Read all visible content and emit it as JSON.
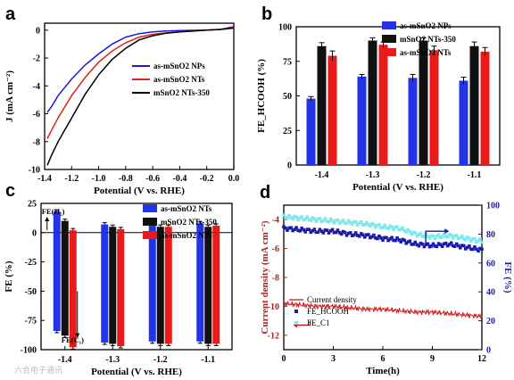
{
  "panels": {
    "a": "a",
    "b": "b",
    "c": "c",
    "d": "d"
  },
  "watermark": "六合电子通讯",
  "chart_data": [
    {
      "id": "a",
      "type": "line",
      "xlabel": "Potential (V vs. RHE)",
      "ylabel": "J (mA cm⁻²)",
      "xlim": [
        -1.4,
        0.0
      ],
      "ylim": [
        -10,
        0.5
      ],
      "xticks": [
        "-1.4",
        "-1.2",
        "-1.0",
        "-0.8",
        "-0.6",
        "-0.4",
        "-0.2",
        "0.0"
      ],
      "yticks": [
        "0",
        "-2",
        "-4",
        "-6",
        "-8",
        "-10"
      ],
      "legend_position": "right",
      "series": [
        {
          "name": "as-mSnO2 NPs",
          "color": "#1a1adb",
          "x": [
            -1.38,
            -1.35,
            -1.3,
            -1.2,
            -1.1,
            -1.0,
            -0.9,
            -0.8,
            -0.7,
            -0.6,
            -0.5,
            -0.4,
            -0.3,
            -0.2,
            -0.1,
            0.0
          ],
          "y": [
            -5.9,
            -5.5,
            -4.7,
            -3.5,
            -2.5,
            -1.7,
            -1.0,
            -0.5,
            -0.25,
            -0.12,
            -0.06,
            -0.03,
            -0.01,
            0.0,
            0.05,
            0.25
          ]
        },
        {
          "name": "as-mSnO2 NTs",
          "color": "#e0201c",
          "x": [
            -1.38,
            -1.35,
            -1.3,
            -1.2,
            -1.1,
            -1.0,
            -0.9,
            -0.8,
            -0.7,
            -0.6,
            -0.5,
            -0.4,
            -0.3,
            -0.2,
            -0.1,
            0.0
          ],
          "y": [
            -7.8,
            -7.2,
            -6.3,
            -4.7,
            -3.4,
            -2.3,
            -1.5,
            -0.9,
            -0.5,
            -0.3,
            -0.2,
            -0.12,
            -0.06,
            0.0,
            0.05,
            0.2
          ]
        },
        {
          "name": "mSnO2 NTs-350",
          "color": "#000000",
          "x": [
            -1.38,
            -1.35,
            -1.3,
            -1.2,
            -1.1,
            -1.0,
            -0.9,
            -0.8,
            -0.7,
            -0.6,
            -0.5,
            -0.4,
            -0.3,
            -0.2,
            -0.1,
            0.0
          ],
          "y": [
            -9.7,
            -9.0,
            -8.0,
            -6.3,
            -4.6,
            -3.2,
            -2.1,
            -1.3,
            -0.7,
            -0.4,
            -0.22,
            -0.12,
            -0.06,
            0.0,
            0.05,
            0.15
          ]
        }
      ]
    },
    {
      "id": "b",
      "type": "bar",
      "xlabel": "Potential (V vs. RHE)",
      "ylabel": "FE_HCOOH (%)",
      "ylim": [
        0,
        100
      ],
      "yticks": [
        "0",
        "25",
        "50",
        "75",
        "100"
      ],
      "categories": [
        "-1.4",
        "-1.3",
        "-1.2",
        "-1.1"
      ],
      "legend_position": "top-right",
      "series": [
        {
          "name": "as-mSnO2 NPs",
          "color": "#2233e8",
          "values": [
            48,
            64,
            63,
            61
          ],
          "err": [
            1.5,
            1.5,
            2.5,
            2.5
          ]
        },
        {
          "name": "mSnO2 NTs-350",
          "color": "#111111",
          "values": [
            86,
            90,
            90,
            86
          ],
          "err": [
            2.5,
            2,
            2,
            3
          ]
        },
        {
          "name": "as-mSnO2 NTs",
          "color": "#e81a1a",
          "values": [
            79,
            87,
            83,
            82
          ],
          "err": [
            3.5,
            2,
            3,
            3
          ]
        }
      ]
    },
    {
      "id": "c",
      "type": "bar",
      "xlabel": "Potential (V vs. RHE)",
      "ylabel": "FE (%)",
      "ylim": [
        -100,
        25
      ],
      "yticks": [
        "25",
        "0",
        "-25",
        "-50",
        "-75",
        "-100"
      ],
      "categories": [
        "-1.4",
        "-1.3",
        "-1.2",
        "-1.1"
      ],
      "annotations": [
        "FE(H₂)",
        "FE(C₁)"
      ],
      "legend_position": "right",
      "series_h2": [
        {
          "name": "as-mSnO2 NTs",
          "color": "#2233e8",
          "values": [
            18,
            7,
            8,
            8
          ]
        },
        {
          "name": "mSnO2 NTs-350",
          "color": "#111111",
          "values": [
            10,
            5,
            5,
            5
          ]
        },
        {
          "name": "as-mSnO2 NPs",
          "color": "#e81a1a",
          "values": [
            2,
            3,
            5,
            6
          ]
        }
      ],
      "series_c1": [
        {
          "name": "as-mSnO2 NTs",
          "color": "#2233e8",
          "values": [
            -84,
            -94,
            -93,
            -93
          ]
        },
        {
          "name": "mSnO2 NTs-350",
          "color": "#111111",
          "values": [
            -88,
            -95,
            -95,
            -95
          ]
        },
        {
          "name": "as-mSnO2 NPs",
          "color": "#e81a1a",
          "values": [
            -98,
            -97,
            -95,
            -95
          ]
        }
      ]
    },
    {
      "id": "d",
      "type": "scatter",
      "xlabel": "Time(h)",
      "ylabel": "Current density (mA cm⁻²)",
      "y2label": "FE (%)",
      "xlim": [
        0,
        12
      ],
      "ylim": [
        -13,
        -3
      ],
      "y2lim": [
        0,
        100
      ],
      "xticks": [
        "0",
        "3",
        "6",
        "9",
        "12"
      ],
      "yticks": [
        "-4",
        "-6",
        "-8",
        "-10",
        "-12"
      ],
      "y2ticks": [
        "0",
        "20",
        "40",
        "60",
        "80",
        "100"
      ],
      "legend": [
        "Current density",
        "FE_HCOOH",
        "FE_C1"
      ],
      "series": [
        {
          "name": "Current density",
          "color": "#d01818",
          "axis": "left",
          "x": [
            0,
            1,
            2,
            3,
            4,
            5,
            6,
            7,
            8,
            9,
            10,
            11,
            12
          ],
          "y": [
            -9.8,
            -9.9,
            -10.0,
            -10.0,
            -10.1,
            -10.2,
            -10.2,
            -10.3,
            -10.4,
            -10.4,
            -10.5,
            -10.6,
            -10.7
          ]
        },
        {
          "name": "FE_HCOOH",
          "color": "#1a1aa8",
          "axis": "right",
          "x": [
            0,
            1,
            2,
            3,
            4,
            5,
            6,
            7,
            8,
            9,
            10,
            11,
            12
          ],
          "y": [
            84,
            83,
            82,
            82,
            80,
            79,
            77,
            76,
            73,
            72,
            73,
            71,
            69
          ]
        },
        {
          "name": "FE_C1",
          "color": "#7ee8ee",
          "axis": "right",
          "x": [
            0,
            1,
            2,
            3,
            4,
            5,
            6,
            7,
            8,
            9,
            10,
            11,
            12
          ],
          "y": [
            92,
            91,
            90,
            89,
            88,
            87,
            85,
            84,
            80,
            78,
            79,
            77,
            75
          ]
        }
      ]
    }
  ]
}
